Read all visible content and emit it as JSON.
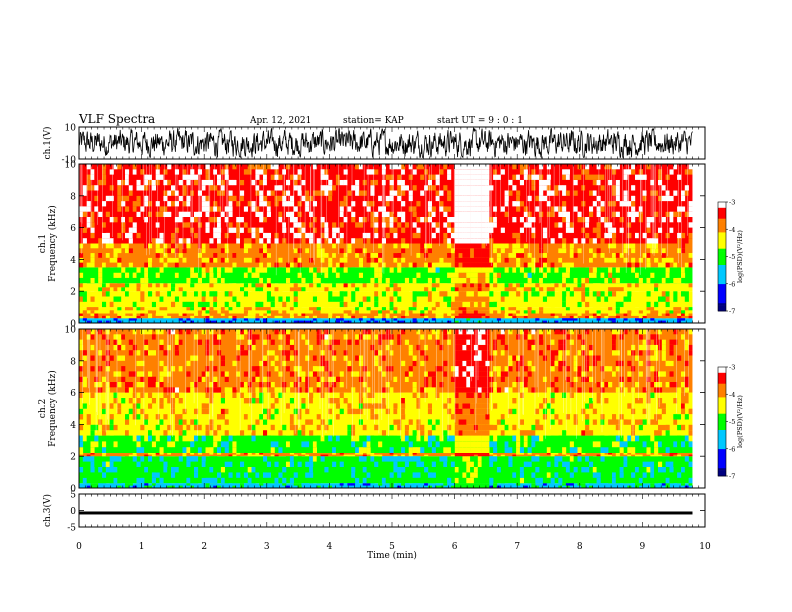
{
  "header": {
    "title": "VLF Spectra",
    "date": "Apr. 12, 2021",
    "station": "station= KAP",
    "start": "start  UT =  9 : 0 : 1"
  },
  "colors": {
    "background": "#ffffff",
    "axes": "#000000",
    "trace": "#000000",
    "colormap": [
      "#000080",
      "#0000ff",
      "#00c8ff",
      "#00ff00",
      "#ffff00",
      "#ff8000",
      "#ff0000",
      "#ffffff"
    ]
  },
  "chart_data": [
    {
      "type": "line",
      "name": "ch1-waveform",
      "ylabel": "ch.1(V)",
      "ylim": [
        -10,
        10
      ],
      "yticks": [
        "10",
        "-10"
      ],
      "x_range_min": [
        0,
        9.8
      ],
      "approx_amplitude_v": 7,
      "grid": false
    },
    {
      "type": "heatmap",
      "name": "ch1-spectrogram",
      "ylabel": "ch.1\nFrequency  (kHz)",
      "ylim_khz": [
        0,
        10
      ],
      "yticks": [
        "0",
        "2",
        "4",
        "6",
        "8",
        "10"
      ],
      "x_range_min": [
        0,
        9.8
      ],
      "gap_min": [
        6.0,
        6.6
      ],
      "bands_khz": [
        {
          "from": 0.0,
          "to": 0.3,
          "level": -6.0
        },
        {
          "from": 0.3,
          "to": 0.6,
          "level": -4.0
        },
        {
          "from": 0.6,
          "to": 1.0,
          "level": -4.2
        },
        {
          "from": 1.0,
          "to": 2.0,
          "level": -4.6
        },
        {
          "from": 2.0,
          "to": 2.5,
          "level": -4.2
        },
        {
          "from": 2.5,
          "to": 3.5,
          "level": -4.7
        },
        {
          "from": 3.5,
          "to": 5.0,
          "level": -4.0
        },
        {
          "from": 5.0,
          "to": 10.0,
          "level": -3.3
        }
      ],
      "colorbar": {
        "label": "log(PSD)(V²/Hz)",
        "range": [
          -7,
          -3
        ],
        "ticks": [
          "-3",
          "-4",
          "-5",
          "-6",
          "-7"
        ]
      }
    },
    {
      "type": "heatmap",
      "name": "ch2-spectrogram",
      "ylabel": "ch.2\nFrequency  (kHz)",
      "ylim_khz": [
        0,
        10
      ],
      "yticks": [
        "0",
        "2",
        "4",
        "6",
        "8",
        "10"
      ],
      "x_range_min": [
        0,
        9.8
      ],
      "gap_min": [
        6.0,
        6.6
      ],
      "bands_khz": [
        {
          "from": 0.0,
          "to": 0.3,
          "level": -5.5
        },
        {
          "from": 0.3,
          "to": 2.0,
          "level": -5.3
        },
        {
          "from": 2.0,
          "to": 2.2,
          "level": -4.0
        },
        {
          "from": 2.2,
          "to": 3.3,
          "level": -5.0
        },
        {
          "from": 3.3,
          "to": 6.0,
          "level": -4.2
        },
        {
          "from": 6.0,
          "to": 10.0,
          "level": -3.8
        }
      ],
      "colorbar": {
        "label": "log(PSD)(V²/Hz)",
        "range": [
          -7,
          -3
        ],
        "ticks": [
          "-3",
          "-4",
          "-5",
          "-6",
          "-7"
        ]
      }
    },
    {
      "type": "line",
      "name": "ch3-waveform",
      "ylabel": "ch.3(V)",
      "ylim": [
        -5,
        5
      ],
      "yticks": [
        "5",
        "0",
        "-5"
      ],
      "x_range_min": [
        0,
        9.8
      ],
      "band_v": [
        -1.2,
        -0.3
      ]
    }
  ],
  "xaxis": {
    "label": "Time  (min)",
    "ticks": [
      "0",
      "1",
      "2",
      "3",
      "4",
      "5",
      "6",
      "7",
      "8",
      "9",
      "10"
    ],
    "xlim": [
      0,
      10
    ]
  }
}
